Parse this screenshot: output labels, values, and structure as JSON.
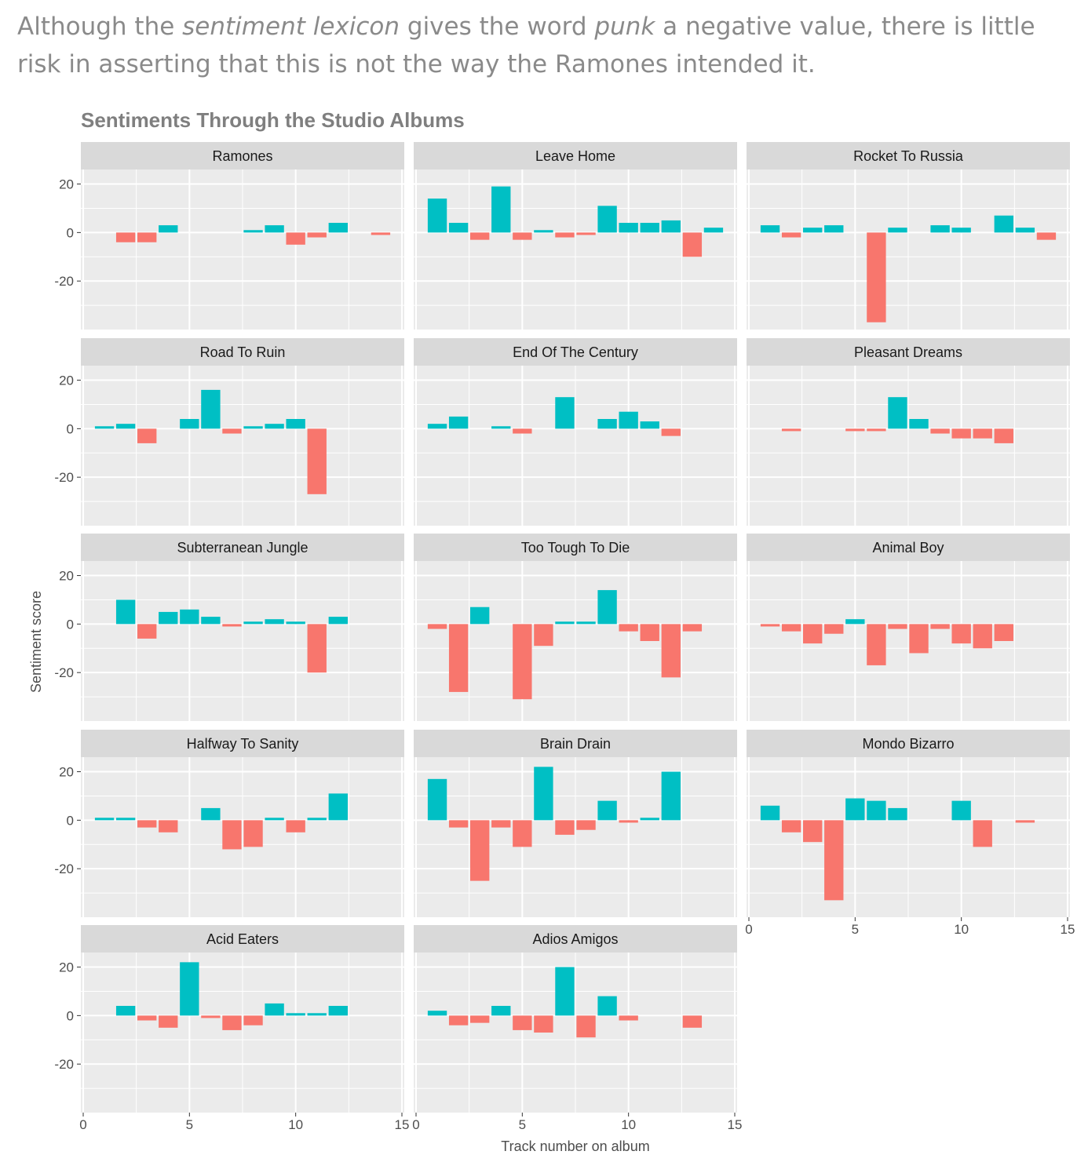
{
  "intro": {
    "part1": "Although the ",
    "em1": "sentiment lexicon",
    "part2": " gives the word ",
    "em2": "punk",
    "part3": " a negative value, there is little risk in asserting that this is not the way the Ramones intended it."
  },
  "colors": {
    "positive": "#00bfc4",
    "negative": "#f8766d",
    "panel_bg": "#ebebeb",
    "strip_bg": "#d9d9d9",
    "grid": "#ffffff"
  },
  "chart_data": {
    "type": "bar",
    "title": "Sentiments Through the Studio Albums",
    "xlabel": "Track number on album",
    "ylabel": "Sentiment score",
    "xlim": [
      0,
      15
    ],
    "ylim": [
      -40,
      26
    ],
    "x_ticks": [
      0,
      5,
      10,
      15
    ],
    "y_ticks": [
      20,
      0,
      -20
    ],
    "grid": true,
    "legend": "none",
    "panels": [
      {
        "name": "Ramones",
        "values": [
          [
            2,
            -4
          ],
          [
            3,
            -4
          ],
          [
            4,
            3
          ],
          [
            8,
            1
          ],
          [
            9,
            3
          ],
          [
            10,
            -5
          ],
          [
            11,
            -2
          ],
          [
            12,
            4
          ],
          [
            14,
            -1
          ]
        ]
      },
      {
        "name": "Leave Home",
        "values": [
          [
            1,
            14
          ],
          [
            2,
            4
          ],
          [
            3,
            -3
          ],
          [
            4,
            19
          ],
          [
            5,
            -3
          ],
          [
            6,
            1
          ],
          [
            7,
            -2
          ],
          [
            8,
            -1
          ],
          [
            9,
            11
          ],
          [
            10,
            4
          ],
          [
            11,
            4
          ],
          [
            12,
            5
          ],
          [
            13,
            -10
          ],
          [
            14,
            2
          ]
        ]
      },
      {
        "name": "Rocket To Russia",
        "values": [
          [
            1,
            3
          ],
          [
            2,
            -2
          ],
          [
            3,
            2
          ],
          [
            4,
            3
          ],
          [
            6,
            -37
          ],
          [
            7,
            2
          ],
          [
            9,
            3
          ],
          [
            10,
            2
          ],
          [
            12,
            7
          ],
          [
            13,
            2
          ],
          [
            14,
            -3
          ]
        ]
      },
      {
        "name": "Road To Ruin",
        "values": [
          [
            1,
            1
          ],
          [
            2,
            2
          ],
          [
            3,
            -6
          ],
          [
            5,
            4
          ],
          [
            6,
            16
          ],
          [
            7,
            -2
          ],
          [
            8,
            1
          ],
          [
            9,
            2
          ],
          [
            10,
            4
          ],
          [
            11,
            -27
          ]
        ]
      },
      {
        "name": "End Of The Century",
        "values": [
          [
            1,
            2
          ],
          [
            2,
            5
          ],
          [
            4,
            1
          ],
          [
            5,
            -2
          ],
          [
            7,
            13
          ],
          [
            9,
            4
          ],
          [
            10,
            7
          ],
          [
            11,
            3
          ],
          [
            12,
            -3
          ]
        ]
      },
      {
        "name": "Pleasant Dreams",
        "values": [
          [
            2,
            -1
          ],
          [
            5,
            -1
          ],
          [
            6,
            -1
          ],
          [
            7,
            13
          ],
          [
            8,
            4
          ],
          [
            9,
            -2
          ],
          [
            10,
            -4
          ],
          [
            11,
            -4
          ],
          [
            12,
            -6
          ]
        ]
      },
      {
        "name": "Subterranean Jungle",
        "values": [
          [
            2,
            10
          ],
          [
            3,
            -6
          ],
          [
            4,
            5
          ],
          [
            5,
            6
          ],
          [
            6,
            3
          ],
          [
            7,
            -1
          ],
          [
            8,
            1
          ],
          [
            9,
            2
          ],
          [
            10,
            1
          ],
          [
            11,
            -20
          ],
          [
            12,
            3
          ]
        ]
      },
      {
        "name": "Too Tough To Die",
        "values": [
          [
            1,
            -2
          ],
          [
            2,
            -28
          ],
          [
            3,
            7
          ],
          [
            5,
            -31
          ],
          [
            6,
            -9
          ],
          [
            7,
            1
          ],
          [
            8,
            1
          ],
          [
            9,
            14
          ],
          [
            10,
            -3
          ],
          [
            11,
            -7
          ],
          [
            12,
            -22
          ],
          [
            13,
            -3
          ]
        ]
      },
      {
        "name": "Animal Boy",
        "values": [
          [
            1,
            -1
          ],
          [
            2,
            -3
          ],
          [
            3,
            -8
          ],
          [
            4,
            -4
          ],
          [
            5,
            2
          ],
          [
            6,
            -17
          ],
          [
            7,
            -2
          ],
          [
            8,
            -12
          ],
          [
            9,
            -2
          ],
          [
            10,
            -8
          ],
          [
            11,
            -10
          ],
          [
            12,
            -7
          ]
        ]
      },
      {
        "name": "Halfway To Sanity",
        "values": [
          [
            1,
            1
          ],
          [
            2,
            1
          ],
          [
            3,
            -3
          ],
          [
            4,
            -5
          ],
          [
            6,
            5
          ],
          [
            7,
            -12
          ],
          [
            8,
            -11
          ],
          [
            9,
            1
          ],
          [
            10,
            -5
          ],
          [
            11,
            1
          ],
          [
            12,
            11
          ]
        ]
      },
      {
        "name": "Brain Drain",
        "values": [
          [
            1,
            17
          ],
          [
            2,
            -3
          ],
          [
            3,
            -25
          ],
          [
            4,
            -3
          ],
          [
            5,
            -11
          ],
          [
            6,
            22
          ],
          [
            7,
            -6
          ],
          [
            8,
            -4
          ],
          [
            9,
            8
          ],
          [
            10,
            -1
          ],
          [
            11,
            1
          ],
          [
            12,
            20
          ]
        ]
      },
      {
        "name": "Mondo Bizarro",
        "values": [
          [
            1,
            6
          ],
          [
            2,
            -5
          ],
          [
            3,
            -9
          ],
          [
            4,
            -33
          ],
          [
            5,
            9
          ],
          [
            6,
            8
          ],
          [
            7,
            5
          ],
          [
            10,
            8
          ],
          [
            11,
            -11
          ],
          [
            13,
            -1
          ]
        ]
      },
      {
        "name": "Acid Eaters",
        "values": [
          [
            2,
            4
          ],
          [
            3,
            -2
          ],
          [
            4,
            -5
          ],
          [
            5,
            22
          ],
          [
            6,
            -1
          ],
          [
            7,
            -6
          ],
          [
            8,
            -4
          ],
          [
            9,
            5
          ],
          [
            10,
            1
          ],
          [
            11,
            1
          ],
          [
            12,
            4
          ]
        ]
      },
      {
        "name": "Adios Amigos",
        "values": [
          [
            1,
            2
          ],
          [
            2,
            -4
          ],
          [
            3,
            -3
          ],
          [
            4,
            4
          ],
          [
            5,
            -6
          ],
          [
            6,
            -7
          ],
          [
            7,
            20
          ],
          [
            8,
            -9
          ],
          [
            9,
            8
          ],
          [
            10,
            -2
          ],
          [
            13,
            -5
          ]
        ]
      }
    ]
  }
}
